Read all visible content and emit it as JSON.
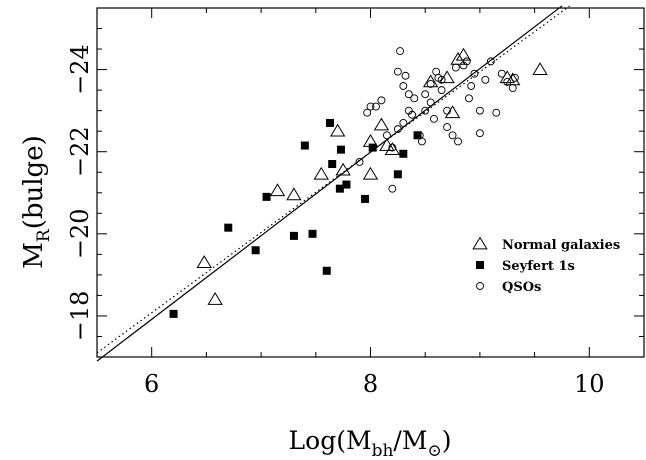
{
  "chart_data": {
    "type": "scatter",
    "xlabel": "Log(M_bh/M_⊙)",
    "ylabel": "M_R(bulge)",
    "xlim": [
      5.5,
      10.5
    ],
    "ylim": [
      -17,
      -25.5
    ],
    "x_ticks": [
      6,
      8,
      10
    ],
    "y_ticks": [
      -18,
      -20,
      -22,
      -24
    ],
    "x_tick_labels": [
      "6",
      "8",
      "10"
    ],
    "y_tick_labels": [
      "−18",
      "−20",
      "−22",
      "−24"
    ],
    "grid": false,
    "legend_position": "bottom-right",
    "series": [
      {
        "name": "Normal galaxies",
        "marker": "open-triangle",
        "points": [
          [
            6.48,
            -19.3
          ],
          [
            6.58,
            -18.4
          ],
          [
            7.15,
            -21.05
          ],
          [
            7.3,
            -20.95
          ],
          [
            7.55,
            -21.45
          ],
          [
            7.7,
            -22.5
          ],
          [
            7.75,
            -21.55
          ],
          [
            8.0,
            -21.45
          ],
          [
            8.0,
            -22.25
          ],
          [
            8.1,
            -22.65
          ],
          [
            8.15,
            -22.15
          ],
          [
            8.2,
            -22.05
          ],
          [
            8.75,
            -22.95
          ],
          [
            8.8,
            -24.25
          ],
          [
            8.85,
            -24.35
          ],
          [
            9.25,
            -23.8
          ],
          [
            9.3,
            -23.75
          ],
          [
            9.55,
            -24.0
          ],
          [
            8.55,
            -23.7
          ],
          [
            8.7,
            -23.8
          ]
        ]
      },
      {
        "name": "Seyfert 1s",
        "marker": "filled-square",
        "points": [
          [
            6.2,
            -18.05
          ],
          [
            6.7,
            -20.15
          ],
          [
            6.95,
            -19.6
          ],
          [
            7.05,
            -20.9
          ],
          [
            7.3,
            -19.95
          ],
          [
            7.4,
            -22.15
          ],
          [
            7.47,
            -20.0
          ],
          [
            7.6,
            -19.1
          ],
          [
            7.63,
            -22.7
          ],
          [
            7.65,
            -21.7
          ],
          [
            7.72,
            -21.1
          ],
          [
            7.73,
            -22.05
          ],
          [
            7.78,
            -21.2
          ],
          [
            7.95,
            -20.85
          ],
          [
            8.02,
            -22.1
          ],
          [
            8.25,
            -21.45
          ],
          [
            8.3,
            -21.95
          ],
          [
            8.43,
            -22.4
          ]
        ]
      },
      {
        "name": "QSOs",
        "marker": "open-circle",
        "points": [
          [
            7.9,
            -21.75
          ],
          [
            7.97,
            -22.95
          ],
          [
            8.0,
            -23.1
          ],
          [
            8.05,
            -23.1
          ],
          [
            8.1,
            -23.25
          ],
          [
            8.15,
            -22.4
          ],
          [
            8.2,
            -22.1
          ],
          [
            8.2,
            -21.1
          ],
          [
            8.25,
            -22.55
          ],
          [
            8.25,
            -23.95
          ],
          [
            8.27,
            -24.45
          ],
          [
            8.3,
            -23.6
          ],
          [
            8.3,
            -22.7
          ],
          [
            8.32,
            -23.85
          ],
          [
            8.35,
            -23.4
          ],
          [
            8.35,
            -23.0
          ],
          [
            8.38,
            -22.9
          ],
          [
            8.4,
            -23.3
          ],
          [
            8.45,
            -22.4
          ],
          [
            8.47,
            -22.25
          ],
          [
            8.5,
            -23.4
          ],
          [
            8.5,
            -23.0
          ],
          [
            8.55,
            -23.2
          ],
          [
            8.58,
            -22.8
          ],
          [
            8.6,
            -23.95
          ],
          [
            8.62,
            -23.8
          ],
          [
            8.65,
            -23.5
          ],
          [
            8.7,
            -23.0
          ],
          [
            8.7,
            -22.6
          ],
          [
            8.75,
            -22.4
          ],
          [
            8.78,
            -24.05
          ],
          [
            8.8,
            -22.25
          ],
          [
            8.85,
            -24.1
          ],
          [
            8.88,
            -24.2
          ],
          [
            8.9,
            -23.3
          ],
          [
            8.92,
            -23.6
          ],
          [
            8.95,
            -23.9
          ],
          [
            9.0,
            -22.45
          ],
          [
            9.0,
            -23.0
          ],
          [
            9.05,
            -23.75
          ],
          [
            9.1,
            -24.2
          ],
          [
            9.15,
            -22.95
          ],
          [
            9.2,
            -23.9
          ],
          [
            9.25,
            -23.7
          ],
          [
            9.3,
            -23.55
          ],
          [
            9.32,
            -23.8
          ],
          [
            8.55,
            -23.65
          ],
          [
            8.65,
            -23.75
          ]
        ]
      }
    ],
    "fit_lines": [
      {
        "style": "solid",
        "x": [
          5.5,
          9.75
        ],
        "y": [
          -16.9,
          -25.55
        ]
      },
      {
        "style": "dotted",
        "x": [
          5.5,
          9.82
        ],
        "y": [
          -17.1,
          -25.55
        ]
      }
    ]
  }
}
